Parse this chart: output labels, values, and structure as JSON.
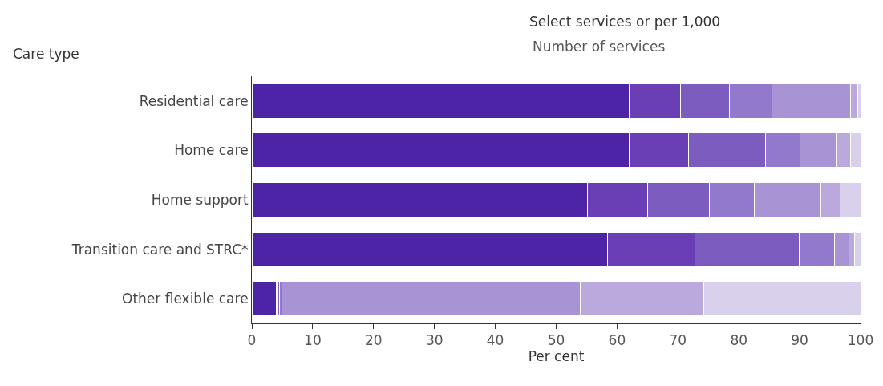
{
  "chart_data": {
    "type": "bar",
    "orientation": "horizontal",
    "stacked": true,
    "title": "Select services or per 1,000",
    "subtitle": "Number of services",
    "ylabel": "Care type",
    "xlabel": "Per cent",
    "categories": [
      "Residential care",
      "Home care",
      "Home support",
      "Transition care and STRC*",
      "Other flexible care"
    ],
    "series": [
      {
        "color": "#4e24a6",
        "values": [
          62.0,
          62.0,
          55.1,
          58.4,
          4.0
        ]
      },
      {
        "color": "#6a3fb5",
        "values": [
          8.4,
          9.8,
          9.9,
          14.4,
          0.3
        ]
      },
      {
        "color": "#7c5cbf",
        "values": [
          8.1,
          12.6,
          10.1,
          17.1,
          0.3
        ]
      },
      {
        "color": "#9379cb",
        "values": [
          7.0,
          5.7,
          7.5,
          5.8,
          0.4
        ]
      },
      {
        "color": "#a894d4",
        "values": [
          12.9,
          6.0,
          10.9,
          2.4,
          48.9
        ]
      },
      {
        "color": "#bba9dd",
        "values": [
          1.2,
          2.2,
          3.1,
          0.9,
          20.4
        ]
      },
      {
        "color": "#d9d0ec",
        "values": [
          0.4,
          1.7,
          3.4,
          1.0,
          25.7
        ]
      }
    ],
    "xlim": [
      0,
      100
    ],
    "xticks": [
      0,
      10,
      20,
      30,
      40,
      50,
      60,
      70,
      80,
      90,
      100
    ]
  }
}
